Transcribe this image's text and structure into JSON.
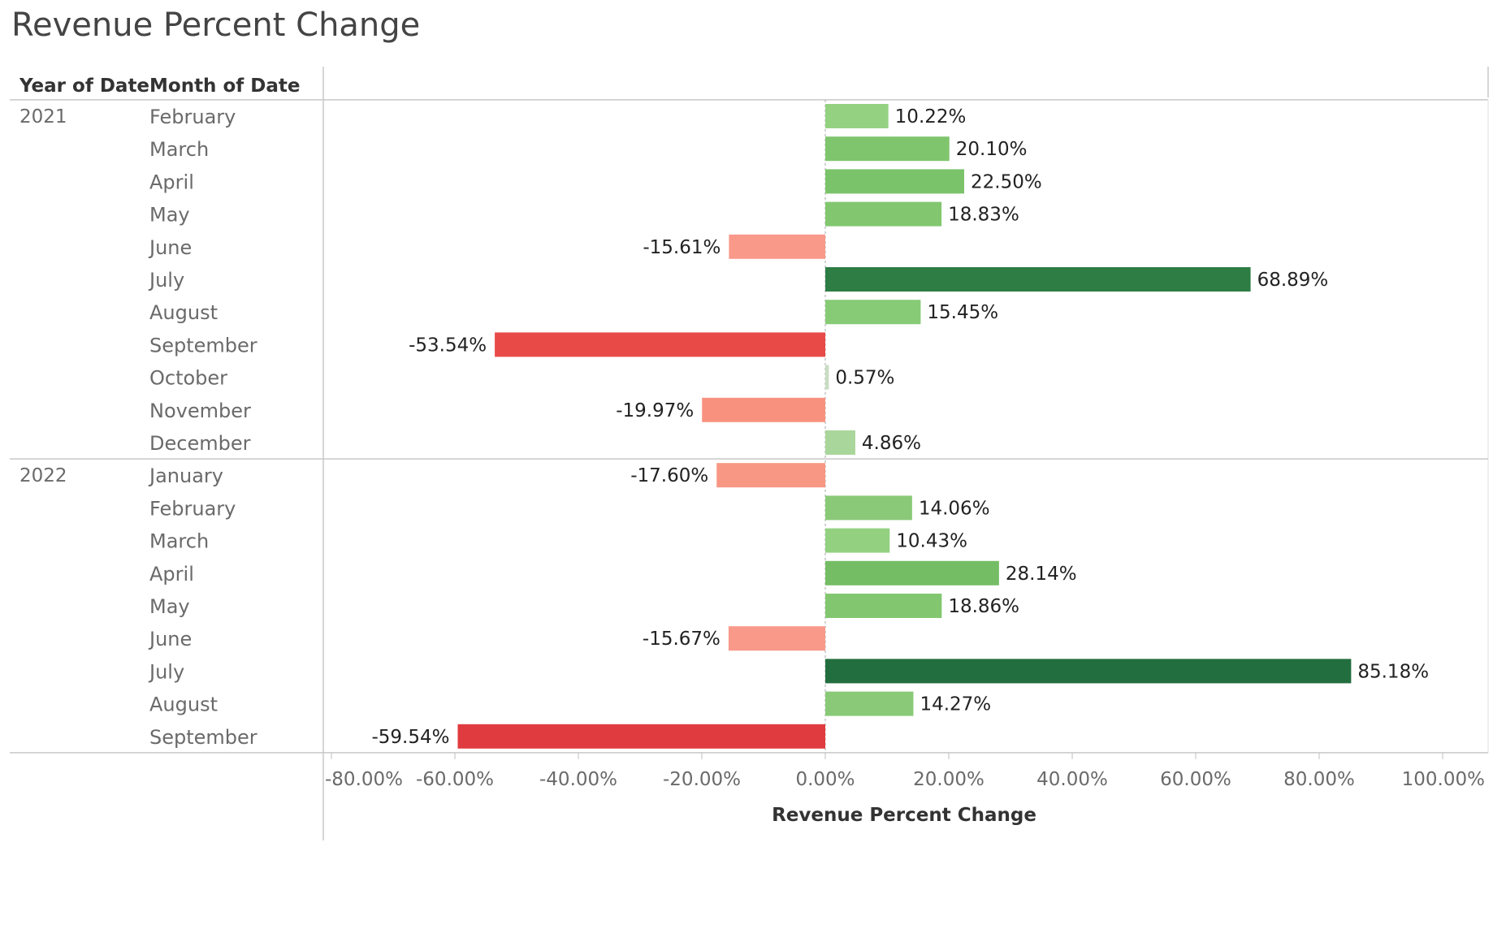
{
  "chart_data": {
    "type": "bar",
    "orientation": "horizontal",
    "title": "Revenue Percent Change",
    "row_headers": {
      "year": "Year of Date",
      "month": "Month of Date"
    },
    "xlabel": "Revenue Percent Change",
    "xlim": [
      -80,
      100
    ],
    "x_ticks": [
      -80,
      -60,
      -40,
      -20,
      0,
      20,
      40,
      60,
      80,
      100
    ],
    "x_tick_labels": [
      "-80.00%",
      "-60.00%",
      "-40.00%",
      "-20.00%",
      "0.00%",
      "20.00%",
      "40.00%",
      "60.00%",
      "80.00%",
      "100.00%"
    ],
    "grid": false,
    "groups": [
      {
        "year": "2021",
        "rows": [
          {
            "month": "February",
            "value": 10.22,
            "label": "10.22%",
            "color": "#94d282"
          },
          {
            "month": "March",
            "value": 20.1,
            "label": "20.10%",
            "color": "#7fc56d"
          },
          {
            "month": "April",
            "value": 22.5,
            "label": "22.50%",
            "color": "#7bc36a"
          },
          {
            "month": "May",
            "value": 18.83,
            "label": "18.83%",
            "color": "#82c770"
          },
          {
            "month": "June",
            "value": -15.61,
            "label": "-15.61%",
            "color": "#f9998a"
          },
          {
            "month": "July",
            "value": 68.89,
            "label": "68.89%",
            "color": "#2d7d45"
          },
          {
            "month": "August",
            "value": 15.45,
            "label": "15.45%",
            "color": "#88cb76"
          },
          {
            "month": "September",
            "value": -53.54,
            "label": "-53.54%",
            "color": "#e84a48"
          },
          {
            "month": "October",
            "value": 0.57,
            "label": "0.57%",
            "color": "#c8dcc2"
          },
          {
            "month": "November",
            "value": -19.97,
            "label": "-19.97%",
            "color": "#f8927f"
          },
          {
            "month": "December",
            "value": 4.86,
            "label": "4.86%",
            "color": "#a9d69b"
          }
        ]
      },
      {
        "year": "2022",
        "rows": [
          {
            "month": "January",
            "value": -17.6,
            "label": "-17.60%",
            "color": "#f89784"
          },
          {
            "month": "February",
            "value": 14.06,
            "label": "14.06%",
            "color": "#8ac977"
          },
          {
            "month": "March",
            "value": 10.43,
            "label": "10.43%",
            "color": "#93d181"
          },
          {
            "month": "April",
            "value": 28.14,
            "label": "28.14%",
            "color": "#74bd64"
          },
          {
            "month": "May",
            "value": 18.86,
            "label": "18.86%",
            "color": "#82c770"
          },
          {
            "month": "June",
            "value": -15.67,
            "label": "-15.67%",
            "color": "#f9998a"
          },
          {
            "month": "July",
            "value": 85.18,
            "label": "85.18%",
            "color": "#236e3e"
          },
          {
            "month": "August",
            "value": 14.27,
            "label": "14.27%",
            "color": "#8ac977"
          },
          {
            "month": "September",
            "value": -59.54,
            "label": "-59.54%",
            "color": "#e03b3f"
          }
        ]
      }
    ]
  }
}
